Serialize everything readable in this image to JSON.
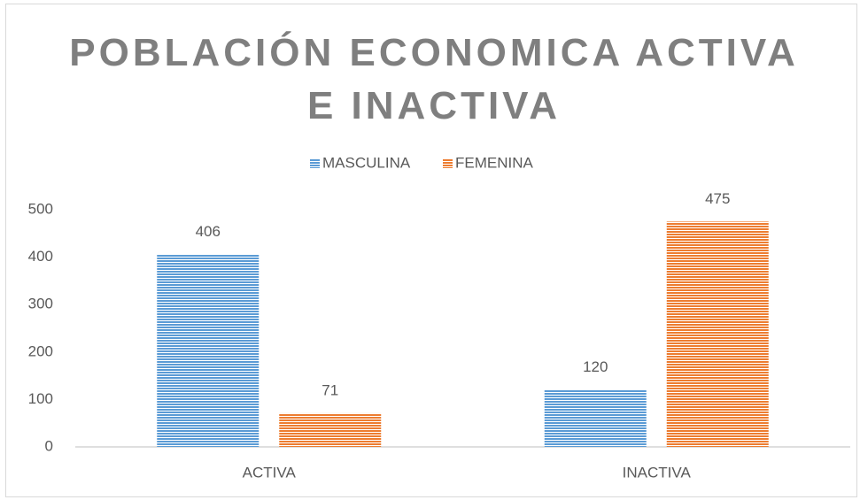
{
  "chart_data": {
    "type": "bar",
    "title": "POBLACIÓN ECONOMICA ACTIVA E INACTIVA",
    "categories": [
      "ACTIVA",
      "INACTIVA"
    ],
    "series": [
      {
        "name": "MASCULINA",
        "color": "#5b9bd5",
        "values": [
          406,
          120
        ]
      },
      {
        "name": "FEMENINA",
        "color": "#ed7d31",
        "values": [
          71,
          475
        ]
      }
    ],
    "ylim": [
      0,
      500
    ],
    "yticks": [
      0,
      100,
      200,
      300,
      400,
      500
    ],
    "grid": false,
    "legend": "top"
  }
}
